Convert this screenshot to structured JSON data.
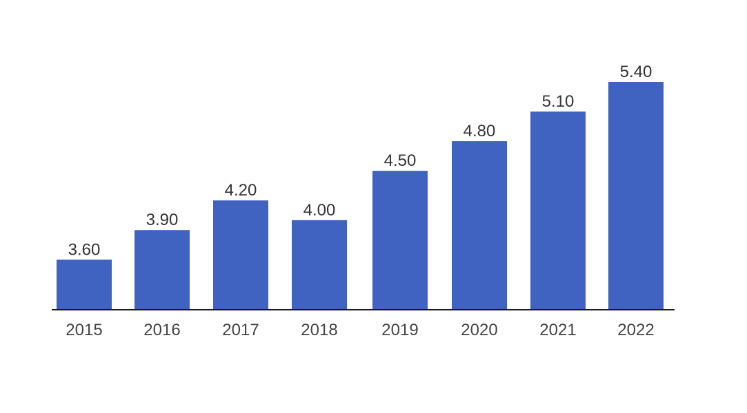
{
  "chart_data": {
    "type": "bar",
    "categories": [
      "2015",
      "2016",
      "2017",
      "2018",
      "2019",
      "2020",
      "2021",
      "2022"
    ],
    "values": [
      3.6,
      3.9,
      4.2,
      4.0,
      4.5,
      4.8,
      5.1,
      5.4
    ],
    "data_labels": [
      "3.60",
      "3.90",
      "4.20",
      "4.00",
      "4.50",
      "4.80",
      "5.10",
      "5.40"
    ],
    "title": "",
    "xlabel": "",
    "ylabel": "",
    "ylim": [
      3.1,
      5.4
    ],
    "grid": false,
    "legend": "none",
    "colors": {
      "bar": "#4063c1",
      "axis": "#1a1a1a"
    }
  }
}
